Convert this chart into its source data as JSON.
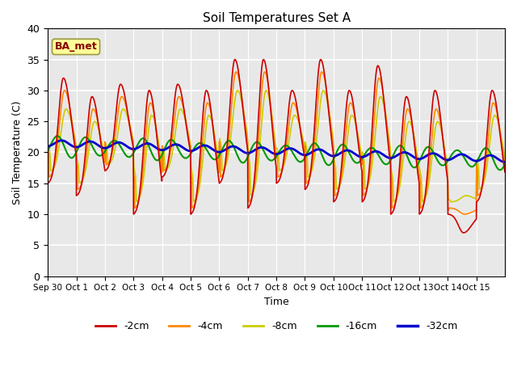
{
  "title": "Soil Temperatures Set A",
  "xlabel": "Time",
  "ylabel": "Soil Temperature (C)",
  "ylim": [
    0,
    40
  ],
  "xlim": [
    0,
    16
  ],
  "xtick_labels": [
    "Sep 30",
    "Oct 1",
    "Oct 2",
    "Oct 3",
    "Oct 4",
    "Oct 5",
    "Oct 6",
    "Oct 7",
    "Oct 8",
    "Oct 9",
    "Oct 10",
    "Oct 11",
    "Oct 12",
    "Oct 13",
    "Oct 14",
    "Oct 15"
  ],
  "ytick_values": [
    0,
    5,
    10,
    15,
    20,
    25,
    30,
    35,
    40
  ],
  "line_colors": [
    "#cc0000",
    "#ff8800",
    "#cccc00",
    "#009900",
    "#0000cc"
  ],
  "line_labels": [
    "-2cm",
    "-4cm",
    "-8cm",
    "-16cm",
    "-32cm"
  ],
  "line_widths": [
    1.2,
    1.2,
    1.2,
    1.5,
    2.0
  ],
  "bg_color": "#e8e8e8",
  "grid_color": "#ffffff",
  "annotation_text": "BA_met",
  "annotation_bg": "#ffff99",
  "annotation_border": "#999944"
}
